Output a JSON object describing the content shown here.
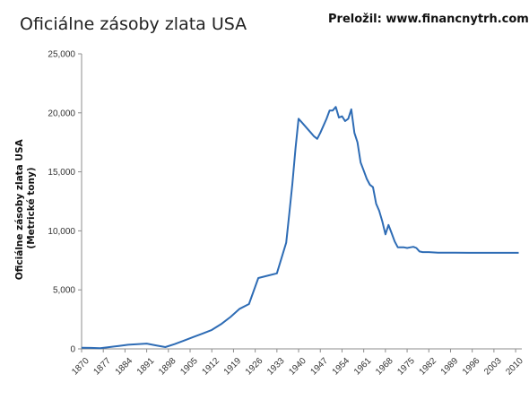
{
  "header": {
    "title": "Oficiálne zásoby zlata USA",
    "credit": "Preložil: www.financnytrh.com"
  },
  "colors": {
    "line": "#2e6cb5",
    "axis": "#8c8c8c"
  },
  "chart_data": {
    "type": "line",
    "title": "Oficiálne zásoby zlata USA",
    "ylabel_lines": [
      "Oficiálne zásoby zlata USA",
      "(Metrické tony)"
    ],
    "xlabel": "",
    "ylim": [
      0,
      25000
    ],
    "xlim": [
      1870,
      2012
    ],
    "grid": false,
    "y_ticks": [
      0,
      5000,
      10000,
      15000,
      20000,
      25000
    ],
    "y_tick_labels": [
      "0",
      "5,000",
      "10,000",
      "15,000",
      "20,000",
      "25,000"
    ],
    "x_ticks": [
      1870,
      1877,
      1884,
      1891,
      1898,
      1905,
      1912,
      1919,
      1926,
      1933,
      1940,
      1947,
      1954,
      1961,
      1968,
      1975,
      1982,
      1989,
      1996,
      2003,
      2010
    ],
    "series": [
      {
        "x": [
          1870,
          1873,
          1876,
          1879,
          1882,
          1885,
          1888,
          1891,
          1894,
          1897,
          1900,
          1903,
          1906,
          1909,
          1912,
          1915,
          1918,
          1921,
          1924,
          1927,
          1930,
          1933,
          1936,
          1937,
          1938,
          1939,
          1940,
          1941,
          1942,
          1943,
          1944,
          1945,
          1946,
          1947,
          1948,
          1949,
          1950,
          1951,
          1952,
          1953,
          1954,
          1955,
          1956,
          1957,
          1958,
          1959,
          1960,
          1961,
          1962,
          1963,
          1964,
          1965,
          1966,
          1967,
          1968,
          1969,
          1970,
          1971,
          1972,
          1973,
          1974,
          1975,
          1976,
          1977,
          1978,
          1979,
          1980,
          1981,
          1982,
          1985,
          1990,
          1995,
          2000,
          2005,
          2011
        ],
        "values": [
          100,
          80,
          60,
          150,
          250,
          350,
          400,
          450,
          300,
          150,
          400,
          700,
          1000,
          1300,
          1600,
          2100,
          2700,
          3400,
          3800,
          6000,
          6200,
          6400,
          9000,
          11500,
          14000,
          17000,
          19500,
          19200,
          18900,
          18600,
          18300,
          18000,
          17800,
          18300,
          18900,
          19500,
          20200,
          20200,
          20500,
          19600,
          19700,
          19300,
          19500,
          20300,
          18300,
          17500,
          15800,
          15100,
          14400,
          13900,
          13700,
          12300,
          11700,
          10800,
          9700,
          10500,
          9800,
          9100,
          8600,
          8600,
          8600,
          8550,
          8600,
          8650,
          8550,
          8250,
          8200,
          8200,
          8200,
          8150,
          8150,
          8140,
          8140,
          8140,
          8140
        ]
      }
    ]
  }
}
